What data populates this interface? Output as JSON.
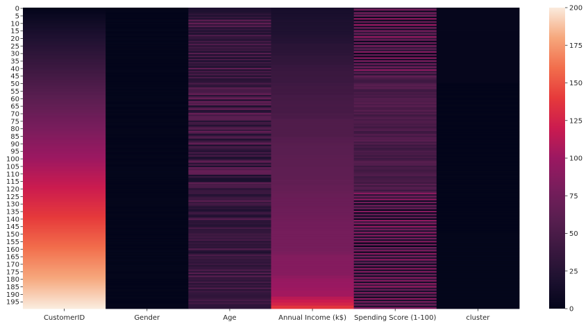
{
  "chart_data": {
    "type": "heatmap",
    "title": "",
    "xlabel": "",
    "ylabel": "",
    "columns": [
      "CustomerID",
      "Gender",
      "Age",
      "Annual Income (k$)",
      "Spending Score (1-100)",
      "cluster"
    ],
    "row_count": 200,
    "row_tick_labels": [
      "0",
      "5",
      "10",
      "15",
      "20",
      "25",
      "30",
      "35",
      "40",
      "45",
      "50",
      "55",
      "60",
      "65",
      "70",
      "75",
      "80",
      "85",
      "90",
      "95",
      "100",
      "105",
      "110",
      "115",
      "120",
      "125",
      "130",
      "135",
      "140",
      "145",
      "150",
      "155",
      "160",
      "165",
      "170",
      "175",
      "180",
      "185",
      "190",
      "195"
    ],
    "row_tick_values": [
      0,
      5,
      10,
      15,
      20,
      25,
      30,
      35,
      40,
      45,
      50,
      55,
      60,
      65,
      70,
      75,
      80,
      85,
      90,
      95,
      100,
      105,
      110,
      115,
      120,
      125,
      130,
      135,
      140,
      145,
      150,
      155,
      160,
      165,
      170,
      175,
      180,
      185,
      190,
      195
    ],
    "colorbar": {
      "vmin": 0,
      "vmax": 200,
      "tick_labels": [
        "0",
        "25",
        "50",
        "75",
        "100",
        "125",
        "150",
        "175",
        "200"
      ],
      "tick_values": [
        0,
        25,
        50,
        75,
        100,
        125,
        150,
        175,
        200
      ],
      "colormap": "rocket"
    },
    "values": {
      "CustomerID": "1..200 (row index + 1)",
      "Gender": [
        0,
        1,
        1,
        0,
        0,
        0,
        0,
        0,
        1,
        0,
        1,
        0,
        0,
        0,
        1,
        1,
        0,
        1,
        1,
        0,
        1,
        1,
        0,
        1,
        0,
        1,
        0,
        1,
        0,
        0,
        1,
        0,
        1,
        1,
        0,
        0,
        0,
        0,
        0,
        0,
        0,
        1,
        1,
        0,
        0,
        0,
        0,
        0,
        0,
        0,
        0,
        1,
        0,
        1,
        0,
        1,
        0,
        1,
        0,
        1,
        1,
        1,
        0,
        0,
        1,
        1,
        0,
        0,
        1,
        0,
        1,
        0,
        0,
        0,
        1,
        1,
        0,
        1,
        0,
        0,
        1,
        1,
        1,
        1,
        0,
        1,
        0,
        0,
        0,
        0,
        0,
        1,
        1,
        0,
        0,
        1,
        0,
        0,
        1,
        1,
        0,
        0,
        1,
        1,
        0,
        0,
        1,
        1,
        1,
        1,
        1,
        1,
        0,
        1,
        0,
        0,
        0,
        0,
        0,
        0,
        0,
        0,
        0,
        0,
        0,
        0,
        1,
        1,
        1,
        1,
        1,
        1,
        0,
        0,
        1,
        0,
        0,
        1,
        1,
        0,
        0,
        1,
        0,
        0,
        1,
        1,
        0,
        0,
        1,
        0,
        0,
        0,
        1,
        0,
        1,
        0,
        1,
        0,
        0,
        0,
        0,
        1,
        0,
        1,
        0,
        1,
        0,
        1,
        1,
        0,
        0,
        1,
        1,
        1,
        1,
        0,
        0,
        1,
        1,
        1,
        0,
        0,
        0,
        0,
        0,
        1,
        0,
        1,
        0,
        0,
        0,
        0,
        1,
        0,
        0,
        0,
        0,
        1,
        1,
        1
      ],
      "Age": [
        19,
        21,
        20,
        23,
        31,
        22,
        35,
        23,
        64,
        30,
        67,
        35,
        58,
        24,
        37,
        22,
        35,
        20,
        52,
        35,
        35,
        25,
        46,
        31,
        54,
        29,
        45,
        35,
        40,
        23,
        60,
        21,
        53,
        18,
        49,
        21,
        42,
        30,
        36,
        20,
        65,
        24,
        48,
        31,
        49,
        24,
        50,
        27,
        29,
        31,
        49,
        33,
        31,
        59,
        50,
        47,
        51,
        69,
        27,
        53,
        70,
        19,
        67,
        54,
        63,
        18,
        43,
        68,
        19,
        32,
        70,
        47,
        60,
        60,
        59,
        26,
        45,
        40,
        23,
        49,
        57,
        38,
        67,
        46,
        21,
        48,
        55,
        22,
        34,
        50,
        68,
        18,
        48,
        40,
        32,
        24,
        47,
        27,
        48,
        20,
        23,
        49,
        67,
        26,
        49,
        21,
        66,
        54,
        68,
        66,
        65,
        19,
        38,
        19,
        18,
        19,
        63,
        49,
        51,
        50,
        27,
        38,
        40,
        39,
        23,
        31,
        43,
        40,
        59,
        38,
        47,
        39,
        25,
        31,
        20,
        29,
        44,
        32,
        19,
        35,
        57,
        32,
        28,
        32,
        25,
        28,
        48,
        32,
        34,
        34,
        43,
        39,
        44,
        38,
        47,
        27,
        37,
        30,
        34,
        30,
        56,
        29,
        19,
        31,
        50,
        36,
        42,
        33,
        36,
        32,
        40,
        28,
        36,
        36,
        52,
        30,
        58,
        27,
        59,
        35,
        37,
        32,
        46,
        29,
        41,
        30,
        54,
        28,
        41,
        36,
        34,
        32,
        33,
        38,
        47,
        35,
        45,
        32,
        32,
        30
      ],
      "Annual Income (k$)": [
        15,
        15,
        16,
        16,
        17,
        17,
        18,
        18,
        19,
        19,
        19,
        19,
        20,
        20,
        20,
        20,
        21,
        21,
        23,
        23,
        24,
        24,
        25,
        25,
        28,
        28,
        28,
        28,
        29,
        29,
        30,
        30,
        33,
        33,
        33,
        33,
        34,
        34,
        37,
        37,
        38,
        38,
        39,
        39,
        39,
        39,
        40,
        40,
        40,
        40,
        42,
        42,
        43,
        43,
        43,
        43,
        44,
        44,
        46,
        46,
        46,
        46,
        47,
        47,
        48,
        48,
        48,
        48,
        48,
        48,
        49,
        49,
        50,
        50,
        54,
        54,
        54,
        54,
        54,
        54,
        54,
        54,
        54,
        54,
        54,
        54,
        57,
        57,
        58,
        58,
        59,
        59,
        60,
        60,
        60,
        60,
        60,
        60,
        61,
        61,
        62,
        62,
        62,
        62,
        62,
        62,
        63,
        63,
        63,
        63,
        63,
        63,
        64,
        64,
        65,
        65,
        65,
        65,
        67,
        67,
        67,
        67,
        69,
        69,
        70,
        70,
        71,
        71,
        71,
        71,
        71,
        71,
        72,
        72,
        73,
        73,
        73,
        73,
        74,
        74,
        75,
        75,
        76,
        76,
        77,
        77,
        77,
        77,
        78,
        78,
        78,
        78,
        78,
        78,
        78,
        78,
        78,
        78,
        78,
        78,
        79,
        79,
        81,
        81,
        85,
        85,
        86,
        86,
        87,
        87,
        87,
        87,
        87,
        87,
        88,
        88,
        88,
        88,
        93,
        93,
        97,
        97,
        98,
        98,
        99,
        99,
        101,
        101,
        103,
        103,
        103,
        103,
        113,
        113,
        120,
        120,
        126,
        126,
        137,
        137
      ],
      "Spending Score (1-100)": [
        39,
        81,
        6,
        77,
        40,
        76,
        6,
        94,
        3,
        72,
        14,
        99,
        15,
        77,
        13,
        79,
        35,
        66,
        29,
        98,
        35,
        73,
        5,
        73,
        14,
        82,
        32,
        61,
        31,
        87,
        4,
        73,
        4,
        92,
        14,
        81,
        17,
        73,
        26,
        75,
        35,
        92,
        36,
        61,
        28,
        65,
        55,
        47,
        42,
        42,
        52,
        60,
        54,
        60,
        45,
        41,
        50,
        46,
        51,
        46,
        56,
        55,
        52,
        59,
        51,
        59,
        50,
        48,
        59,
        47,
        55,
        42,
        49,
        56,
        47,
        54,
        53,
        48,
        52,
        42,
        51,
        55,
        41,
        44,
        57,
        46,
        58,
        55,
        60,
        46,
        55,
        41,
        49,
        40,
        42,
        52,
        47,
        50,
        42,
        49,
        41,
        48,
        59,
        55,
        56,
        42,
        50,
        46,
        43,
        48,
        52,
        54,
        42,
        46,
        48,
        50,
        43,
        59,
        43,
        57,
        56,
        40,
        58,
        91,
        29,
        77,
        35,
        95,
        11,
        75,
        9,
        75,
        34,
        71,
        5,
        88,
        7,
        73,
        10,
        72,
        5,
        93,
        40,
        87,
        12,
        97,
        36,
        74,
        22,
        90,
        17,
        88,
        20,
        76,
        16,
        89,
        1,
        78,
        1,
        73,
        35,
        83,
        5,
        93,
        26,
        75,
        20,
        95,
        27,
        63,
        13,
        75,
        10,
        92,
        13,
        86,
        15,
        69,
        14,
        90,
        32,
        86,
        15,
        88,
        39,
        97,
        24,
        68,
        17,
        85,
        23,
        69,
        8,
        91,
        16,
        79,
        28,
        74,
        18,
        83
      ],
      "cluster": [
        2,
        2,
        2,
        2,
        2,
        2,
        2,
        2,
        2,
        2,
        2,
        2,
        2,
        2,
        2,
        2,
        2,
        2,
        2,
        2,
        2,
        2,
        2,
        2,
        2,
        2,
        2,
        2,
        2,
        2,
        2,
        2,
        2,
        2,
        2,
        2,
        2,
        2,
        2,
        2,
        2,
        2,
        2,
        2,
        2,
        2,
        2,
        2,
        2,
        2,
        0,
        0,
        0,
        0,
        0,
        0,
        0,
        0,
        0,
        0,
        0,
        0,
        0,
        0,
        0,
        0,
        0,
        0,
        0,
        0,
        0,
        0,
        0,
        0,
        0,
        0,
        0,
        0,
        0,
        0,
        0,
        0,
        0,
        0,
        0,
        0,
        0,
        0,
        0,
        0,
        0,
        0,
        0,
        0,
        0,
        0,
        0,
        0,
        0,
        0,
        0,
        0,
        0,
        0,
        0,
        0,
        0,
        0,
        0,
        0,
        0,
        0,
        0,
        0,
        0,
        0,
        0,
        0,
        0,
        0,
        0,
        0,
        0,
        0,
        0,
        0,
        0,
        0,
        0,
        0,
        0,
        0,
        0,
        0,
        0,
        0,
        0,
        0,
        0,
        0,
        0,
        0,
        0,
        0,
        0,
        0,
        0,
        0,
        0,
        0,
        1,
        1,
        1,
        1,
        1,
        1,
        1,
        1,
        1,
        1,
        1,
        1,
        1,
        1,
        1,
        1,
        1,
        1,
        1,
        1,
        1,
        1,
        1,
        1,
        1,
        1,
        1,
        1,
        1,
        1,
        1,
        1,
        1,
        1,
        1,
        1,
        1,
        1,
        1,
        1,
        1,
        1,
        1,
        1,
        1,
        1,
        1,
        1,
        1,
        1
      ]
    }
  }
}
